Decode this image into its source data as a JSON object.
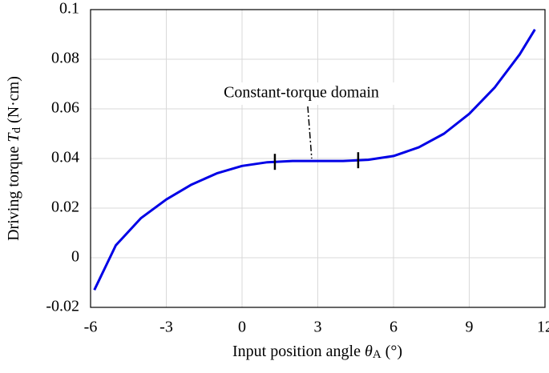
{
  "chart_data": {
    "type": "line",
    "xlabel": {
      "text": "Input position angle ",
      "symbol": "θ",
      "subscript": "A",
      "unit": " (°)"
    },
    "ylabel": {
      "text": "Driving torque ",
      "symbol": "T",
      "subscript": "d",
      "unit": " (N·cm)"
    },
    "x": [
      -5.85,
      -5,
      -4,
      -3,
      -2,
      -1,
      0,
      1,
      2,
      3,
      4,
      5,
      6,
      7,
      8,
      9,
      10,
      11,
      11.6
    ],
    "values": [
      -0.013,
      0.005,
      0.016,
      0.0235,
      0.0295,
      0.034,
      0.037,
      0.0385,
      0.039,
      0.039,
      0.039,
      0.0395,
      0.041,
      0.0445,
      0.05,
      0.058,
      0.0685,
      0.082,
      0.092
    ],
    "color": "#0000e6",
    "xlim": [
      -6,
      12
    ],
    "xticks": [
      -6,
      -3,
      0,
      3,
      6,
      9,
      12
    ],
    "ylim": [
      -0.02,
      0.1
    ],
    "yticks": [
      -0.02,
      0,
      0.02,
      0.04,
      0.06,
      0.08,
      0.1
    ],
    "grid": true,
    "annotation": {
      "text": "Constant-torque domain",
      "range": [
        1.3,
        4.6
      ]
    }
  }
}
